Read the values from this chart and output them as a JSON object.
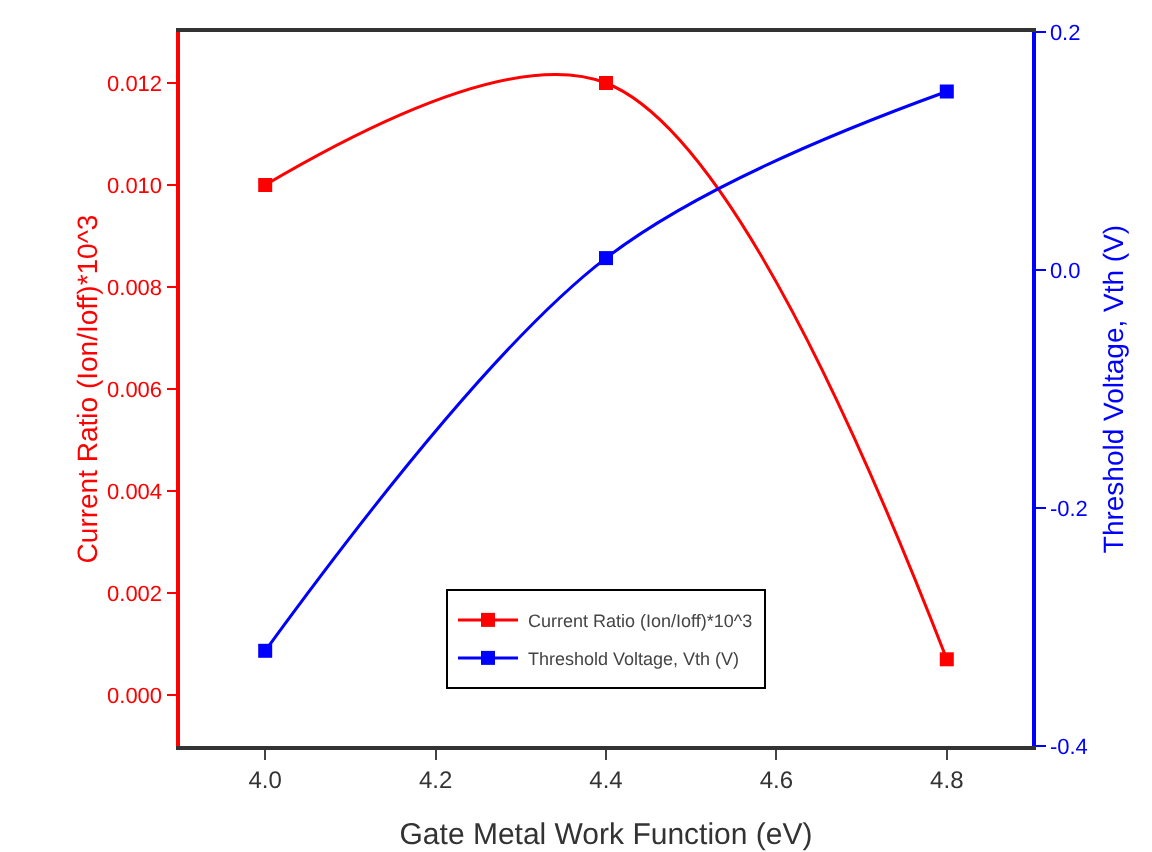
{
  "chart_data": {
    "type": "line",
    "xlabel": "Gate Metal Work Function (eV)",
    "ylabel": "Current Ratio (Ion/Ioff)*10^3",
    "y2label": "Threshold Voltage, Vth (V)",
    "x": [
      4.0,
      4.4,
      4.8
    ],
    "series": [
      {
        "name": "Current Ratio (Ion/Ioff)*10^3",
        "color": "#ff0000",
        "values": [
          0.01,
          0.012,
          0.0007
        ]
      },
      {
        "name": "Threshold Voltage, Vth (V)",
        "color": "#0000ff",
        "values": [
          -0.32,
          0.01,
          0.15
        ],
        "axis": "y2"
      }
    ],
    "xlim": [
      3.9,
      4.9
    ],
    "xticks": [
      {
        "value": 4.0,
        "label": "4.0"
      },
      {
        "value": 4.2,
        "label": "4.2"
      },
      {
        "value": 4.4,
        "label": "4.4"
      },
      {
        "value": 4.6,
        "label": "4.6"
      },
      {
        "value": 4.8,
        "label": "4.8"
      }
    ],
    "ylim": [
      -0.001,
      0.013
    ],
    "yticks": [
      {
        "value": 0,
        "label": "0.000"
      },
      {
        "value": 0.002,
        "label": "0.002"
      },
      {
        "value": 0.004,
        "label": "0.004"
      },
      {
        "value": 0.006,
        "label": "0.006"
      },
      {
        "value": 0.008,
        "label": "0.008"
      },
      {
        "value": 0.01,
        "label": "0.010"
      },
      {
        "value": 0.012,
        "label": "0.012"
      }
    ],
    "y2lim": [
      -0.4,
      0.2
    ],
    "y2ticks": [
      {
        "value": -0.4,
        "label": "-0.4"
      },
      {
        "value": -0.2,
        "label": "-0.2"
      },
      {
        "value": 0,
        "label": "0.0"
      },
      {
        "value": 0.2,
        "label": "0.2"
      }
    ],
    "grid": false,
    "legend": "bottom",
    "marker": "square",
    "line_style": "solid"
  }
}
